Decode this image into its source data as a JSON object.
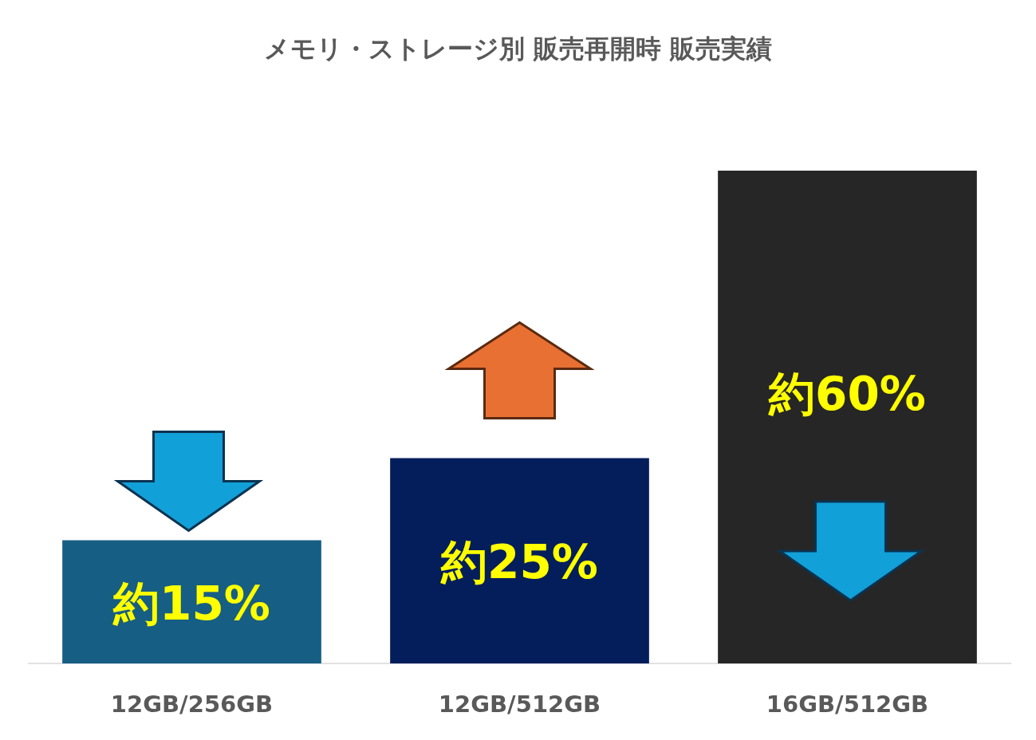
{
  "chart_data": {
    "type": "bar",
    "title": "メモリ・ストレージ別 販売再開時 販売実績",
    "categories": [
      "12GB/256GB",
      "12GB/512GB",
      "16GB/512GB"
    ],
    "values": [
      15,
      25,
      60
    ],
    "colors": [
      "#165e83",
      "#041e5c",
      "#262626"
    ],
    "value_labels": [
      "約15%",
      "約25%",
      "約60%"
    ],
    "grid": false
  }
}
